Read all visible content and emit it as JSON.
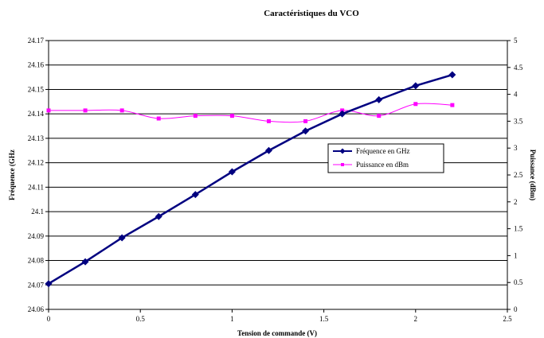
{
  "chart_data": {
    "type": "line",
    "title": "Caractéristiques du VCO",
    "xlabel": "Tension de commande (V)",
    "ylabel": "Fréquence (GHz",
    "y2label": "Puissance (dBm)",
    "xlim": [
      0,
      2.5
    ],
    "ylim": [
      24.06,
      24.17
    ],
    "y2lim": [
      0,
      5
    ],
    "x_ticks": [
      "0",
      "0.5",
      "1",
      "1.5",
      "2",
      "2.5"
    ],
    "y_ticks": [
      "24.06",
      "24.07",
      "24.08",
      "24.09",
      "24.1",
      "24.11",
      "24.12",
      "24.13",
      "24.14",
      "24.15",
      "24.16",
      "24.17"
    ],
    "y2_ticks": [
      "0",
      "0.5",
      "1",
      "1.5",
      "2",
      "2.5",
      "3",
      "3.5",
      "4",
      "4.5",
      "5"
    ],
    "grid": "horizontal",
    "legend_position": "center-right",
    "x": [
      0,
      0.2,
      0.4,
      0.6,
      0.8,
      1.0,
      1.2,
      1.4,
      1.6,
      1.8,
      2.0,
      2.2
    ],
    "series": [
      {
        "name": "Fréquence en GHz",
        "axis": "left",
        "color": "#000080",
        "marker": "diamond",
        "values": [
          24.0705,
          24.0795,
          24.0893,
          24.098,
          24.107,
          24.1163,
          24.125,
          24.133,
          24.14,
          24.1458,
          24.1515,
          24.156
        ]
      },
      {
        "name": "Puissance en dBm",
        "axis": "right",
        "color": "#ff00ff",
        "marker": "square",
        "values": [
          3.7,
          3.7,
          3.7,
          3.55,
          3.6,
          3.6,
          3.5,
          3.5,
          3.7,
          3.6,
          3.82,
          3.8
        ]
      }
    ]
  }
}
